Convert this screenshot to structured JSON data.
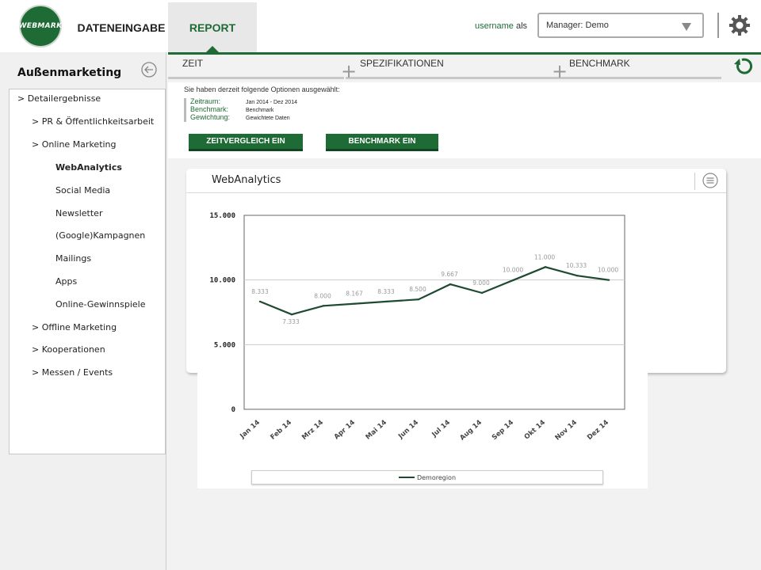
{
  "app": {
    "logo_text": "WEBMARK",
    "nav": {
      "dateneingabe": "DATENEINGABE",
      "report": "REPORT"
    },
    "user": {
      "name": "username",
      "suffix": "als"
    },
    "manager_select": {
      "value": "Manager: Demo"
    },
    "icons": {
      "settings": "gear-icon",
      "refresh": "refresh-icon",
      "back": "back-arrow-icon",
      "menu": "menu-lines-icon"
    },
    "accent_color": "#1e6b36"
  },
  "sidebar": {
    "title": "Außenmarketing",
    "items": [
      {
        "label": "> Detailergebnisse"
      },
      {
        "label": "> PR & Öffentlichkeitsarbeit"
      },
      {
        "label": "> Online Marketing"
      },
      {
        "label": "WebAnalytics"
      },
      {
        "label": "Social Media"
      },
      {
        "label": "Newsletter"
      },
      {
        "label": "(Google)Kampagnen"
      },
      {
        "label": "Mailings"
      },
      {
        "label": "Apps"
      },
      {
        "label": "Online-Gewinnspiele"
      },
      {
        "label": "> Offline Marketing"
      },
      {
        "label": "> Kooperationen"
      },
      {
        "label": "> Messen / Events"
      }
    ],
    "active_item": "WebAnalytics"
  },
  "tabs": [
    {
      "label": "ZEIT"
    },
    {
      "label": "SPEZIFIKATIONEN"
    },
    {
      "label": "BENCHMARK"
    }
  ],
  "options": {
    "heading": "Sie haben derzeit folgende Optionen ausgewählt:",
    "rows": [
      {
        "key": "Zeitraum:",
        "value": "Jan 2014 - Dez 2014"
      },
      {
        "key": "Benchmark:",
        "value": "Benchmark"
      },
      {
        "key": "Gewichtung:",
        "value": "Gewichtete Daten"
      }
    ],
    "buttons": {
      "zeitvergleich": "ZEITVERGLEICH EIN",
      "benchmark": "BENCHMARK EIN"
    }
  },
  "card": {
    "title": "WebAnalytics"
  },
  "chart_data": {
    "type": "line",
    "categories": [
      "Jan 14",
      "Feb 14",
      "Mrz 14",
      "Apr 14",
      "Mai 14",
      "Jun 14",
      "Jul 14",
      "Aug 14",
      "Sep 14",
      "Okt 14",
      "Nov 14",
      "Dez 14"
    ],
    "series": [
      {
        "name": "Demoregion",
        "values": [
          8333,
          7333,
          8000,
          8167,
          8333,
          8500,
          9667,
          9000,
          10000,
          11000,
          10333,
          10000
        ],
        "labels": [
          "8.333",
          "7.333",
          "8.000",
          "8.167",
          "8.333",
          "8.500",
          "9.667",
          "9.000",
          "10.000",
          "11.000",
          "10.333",
          "10.000"
        ],
        "color": "#1e4a30"
      }
    ],
    "ylim": [
      0,
      15000
    ],
    "yticks": [
      {
        "value": 0,
        "label": "0"
      },
      {
        "value": 5000,
        "label": "5.000"
      },
      {
        "value": 10000,
        "label": "10.000"
      },
      {
        "value": 15000,
        "label": "15.000"
      }
    ],
    "grid": true,
    "legend": "bottom",
    "title": "",
    "xlabel": "",
    "ylabel": ""
  }
}
